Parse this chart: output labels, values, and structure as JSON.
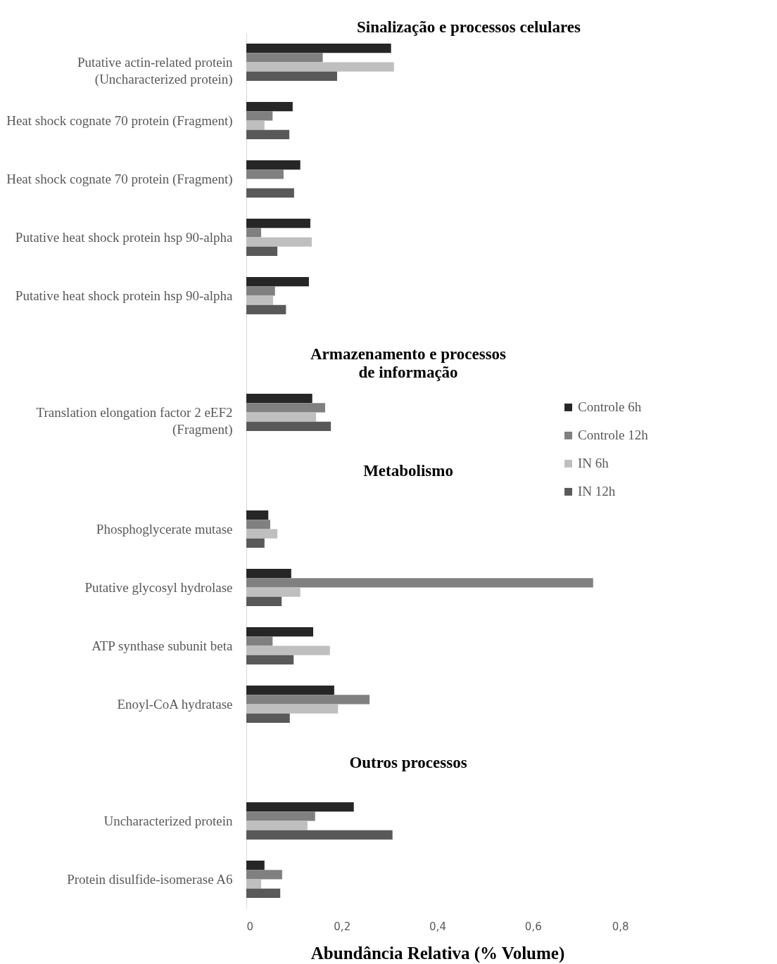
{
  "chart_data": {
    "type": "bar",
    "orientation": "horizontal",
    "categories": [
      "Putative actin-related protein\n(Uncharacterized protein)",
      "Heat shock cognate 70 protein (Fragment)",
      "Heat shock cognate 70 protein (Fragment)",
      "Putative heat shock protein hsp 90-alpha",
      "Putative heat shock protein hsp 90-alpha",
      null,
      "Translation elongation factor 2  eEF2\n(Fragment)",
      null,
      "Phosphoglycerate mutase",
      "Putative glycosyl hydrolase",
      "ATP synthase subunit beta",
      "Enoyl-CoA hydratase",
      null,
      "Uncharacterized protein",
      "Protein disulfide-isomerase A6"
    ],
    "series": [
      {
        "name": "Controle 6h",
        "color": "#262626",
        "values": [
          0.303,
          0.097,
          0.113,
          0.134,
          0.131,
          null,
          0.138,
          null,
          0.046,
          0.094,
          0.14,
          0.184,
          null,
          0.225,
          0.038
        ]
      },
      {
        "name": "Controle 12h",
        "color": "#808080",
        "values": [
          0.16,
          0.055,
          0.078,
          0.031,
          0.06,
          null,
          0.165,
          null,
          0.05,
          0.726,
          0.055,
          0.258,
          null,
          0.144,
          0.075
        ]
      },
      {
        "name": "IN 6h",
        "color": "#bfbfbf",
        "values": [
          0.309,
          0.038,
          null,
          0.137,
          0.056,
          null,
          0.146,
          null,
          0.065,
          0.113,
          0.175,
          0.192,
          null,
          0.128,
          0.031
        ]
      },
      {
        "name": "IN 12h",
        "color": "#595959",
        "values": [
          0.19,
          0.09,
          0.1,
          0.065,
          0.083,
          null,
          0.177,
          null,
          0.038,
          0.074,
          0.099,
          0.091,
          null,
          0.306,
          0.071
        ]
      }
    ],
    "xlabel": "Abundância Relativa (% Volume)",
    "xlim": [
      0,
      0.8
    ],
    "xticks": [
      0,
      {
        "value": 0.2,
        "label": "0,2"
      },
      {
        "value": 0.4,
        "label": "0,4"
      },
      {
        "value": 0.6,
        "label": "0,6"
      },
      {
        "value": 0.8,
        "label": "0,8"
      }
    ],
    "annotations": [
      "Sinalização e processos celulares",
      "Armazenamento e processos\nde informação",
      "Metabolismo",
      "Outros processos"
    ],
    "legend": "right",
    "grid": false
  }
}
